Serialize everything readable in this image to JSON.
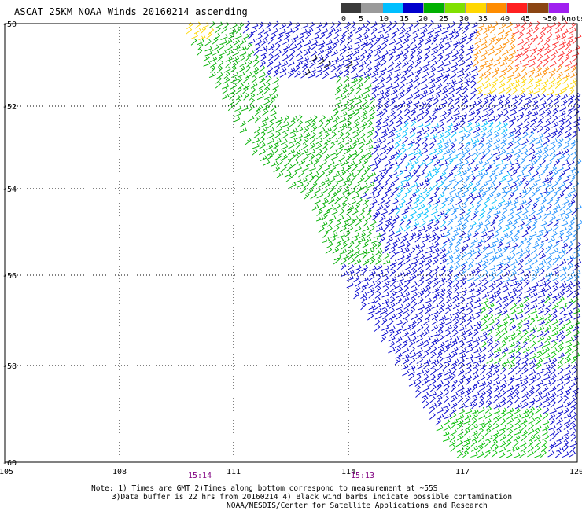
{
  "title": "ASCAT 25KM NOAA Winds 20160214 ascending",
  "legend": {
    "labels": [
      "0",
      "5",
      "10",
      "15",
      "20",
      "25",
      "30",
      "35",
      "40",
      "45",
      ">50 knots"
    ],
    "colors": [
      "#3a3a3a",
      "#9a9a9a",
      "#00bfff",
      "#0000cd",
      "#00b000",
      "#80e000",
      "#ffd700",
      "#ff8c00",
      "#ff2020",
      "#8b4513",
      "#a020f0",
      "#3b0070"
    ]
  },
  "axes": {
    "lon_labels": [
      "105",
      "108",
      "111",
      "114",
      "117",
      "120"
    ],
    "lat_labels": [
      "-50",
      "-52",
      "-54",
      "-56",
      "-58",
      "-60"
    ],
    "times": [
      "15:14",
      "15:13"
    ]
  },
  "notes": {
    "line1": "Note: 1) Times are GMT 2)Times along bottom correspond to measurement at ~55S",
    "line2": "3)Data buffer is 22 hrs from 20160214 4) Black wind barbs indicate possible contamination",
    "line3": "NOAA/NESDIS/Center for Satellite Applications and Research"
  }
}
